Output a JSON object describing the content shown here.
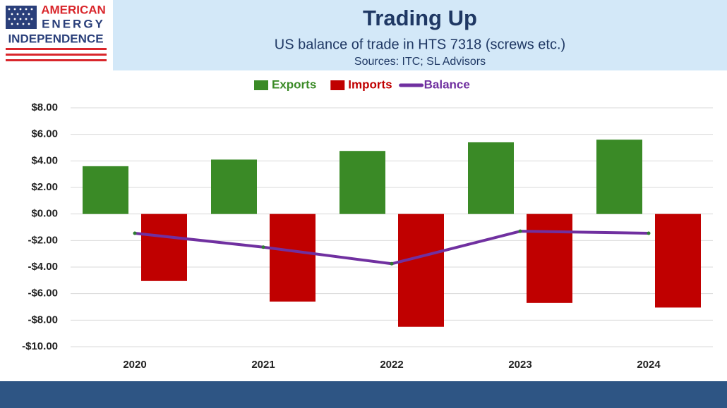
{
  "logo": {
    "lines": [
      "AMERICAN",
      "ENERGY",
      "INDEPENDENCE"
    ]
  },
  "chart_data": {
    "type": "bar",
    "title": "Trading Up",
    "subtitle": "US balance of trade in HTS 7318 (screws etc.)",
    "source": "Sources: ITC; SL Advisors",
    "categories": [
      "2020",
      "2021",
      "2022",
      "2023",
      "2024"
    ],
    "series": [
      {
        "name": "Exports",
        "color": "#3a8a26",
        "type": "bar",
        "values": [
          3.6,
          4.1,
          4.75,
          5.4,
          5.6
        ]
      },
      {
        "name": "Imports",
        "color": "#c00000",
        "type": "bar",
        "values": [
          -5.05,
          -6.6,
          -8.5,
          -6.7,
          -7.05
        ]
      },
      {
        "name": "Balance",
        "color": "#7030a0",
        "type": "line",
        "values": [
          -1.45,
          -2.5,
          -3.75,
          -1.3,
          -1.45
        ]
      }
    ],
    "ylim": [
      -10,
      8
    ],
    "yticks": [
      {
        "value": -10,
        "label": "-$10.00"
      },
      {
        "value": -8,
        "label": "-$8.00"
      },
      {
        "value": -6,
        "label": "-$6.00"
      },
      {
        "value": -4,
        "label": "-$4.00"
      },
      {
        "value": -2,
        "label": "-$2.00"
      },
      {
        "value": 0,
        "label": "$0.00"
      },
      {
        "value": 2,
        "label": "$2.00"
      },
      {
        "value": 4,
        "label": "$4.00"
      },
      {
        "value": 6,
        "label": "$6.00"
      },
      {
        "value": 8,
        "label": "$8.00"
      }
    ],
    "grid": true,
    "legend": "top"
  }
}
